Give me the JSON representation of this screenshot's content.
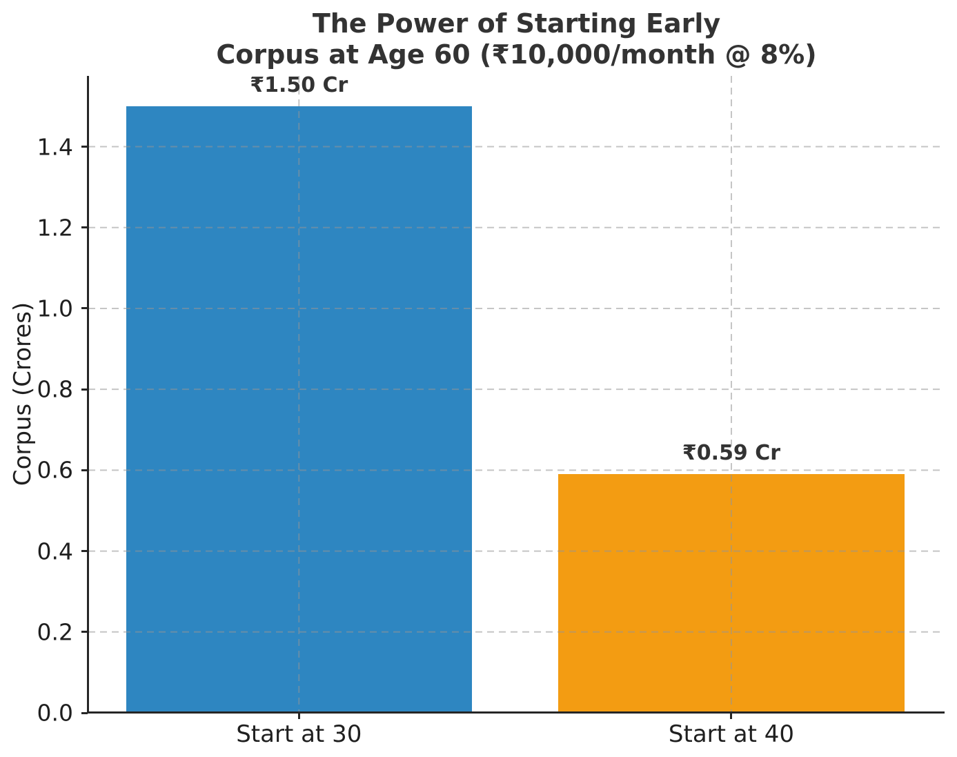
{
  "chart_data": {
    "type": "bar",
    "title_line1": "The Power of Starting Early",
    "title_line2": "Corpus at Age 60 (₹10,000/month @ 8%)",
    "ylabel": "Corpus (Crores)",
    "xlabel": "",
    "categories": [
      "Start at 30",
      "Start at 40"
    ],
    "values": [
      1.5,
      0.59
    ],
    "bar_value_labels": [
      "₹1.50 Cr",
      "₹0.59 Cr"
    ],
    "bar_colors": [
      "#2E86C1",
      "#F39C12"
    ],
    "ytick_values": [
      0.0,
      0.2,
      0.4,
      0.6,
      0.8,
      1.0,
      1.2,
      1.4
    ],
    "ytick_labels": [
      "0.0",
      "0.2",
      "0.4",
      "0.6",
      "0.8",
      "1.0",
      "1.2",
      "1.4"
    ],
    "ylim": [
      0,
      1.575
    ],
    "grid": "dashed gridlines horizontal at y-ticks and vertical at bar centers, drawn above bars",
    "legend": "none",
    "layout": {
      "bar_center_fracs": [
        0.246,
        0.751
      ],
      "bar_width_frac": 0.404
    }
  },
  "colors": {
    "background": "#ffffff",
    "bar_blue": "#2E86C1",
    "bar_orange": "#F39C12",
    "title_text": "#333333",
    "tick_text": "#1f1f1f",
    "spine": "#262626",
    "gridline": "rgba(150,150,150,0.55)"
  }
}
